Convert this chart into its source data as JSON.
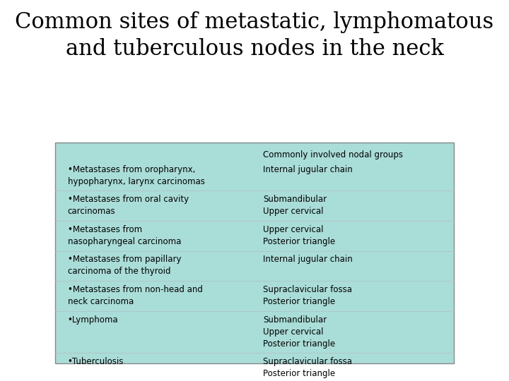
{
  "title_line1": "Common sites of metastatic, lymphomatous",
  "title_line2": "and tuberculous nodes in the neck",
  "title_fontsize": 22,
  "title_font": "serif",
  "bg_color": "#ffffff",
  "table_bg_color": "#a8ddd8",
  "table_border_color": "#888888",
  "text_color": "#000000",
  "header_col2": "Commonly involved nodal groups",
  "rows": [
    {
      "col1": "•Metastases from oropharynx,\nhypopharynx, larynx carcinomas",
      "col2": "Internal jugular chain"
    },
    {
      "col1": "•Metastases from oral cavity\ncarcinomas",
      "col2": "Submandibular\nUpper cervical"
    },
    {
      "col1": "•Metastases from\nnasopharyngeal carcinoma",
      "col2": "Upper cervical\nPosterior triangle"
    },
    {
      "col1": "•Metastases from papillary\ncarcinoma of the thyroid",
      "col2": "Internal jugular chain"
    },
    {
      "col1": "•Metastases from non-head and\nneck carcinoma",
      "col2": "Supraclavicular fossa\nPosterior triangle"
    },
    {
      "col1": "•Lymphoma",
      "col2": "Submandibular\nUpper cervical\nPosterior triangle"
    },
    {
      "col1": "•Tuberculosis",
      "col2": "Supraclavicular fossa\nPosterior triangle"
    }
  ]
}
